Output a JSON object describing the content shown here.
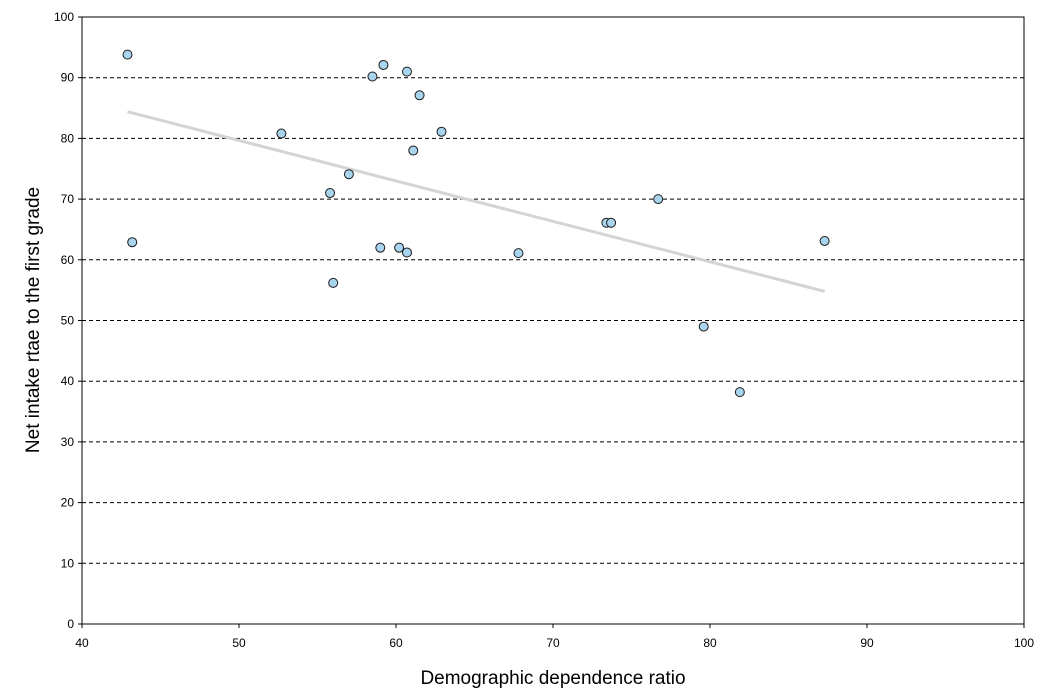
{
  "chart_data": {
    "type": "scatter",
    "xlabel": "Demographic dependence ratio",
    "ylabel": "Net intake rtae to the first grade",
    "xlim": [
      40,
      100
    ],
    "ylim": [
      0,
      100
    ],
    "x_ticks": [
      "40",
      "50",
      "60",
      "70",
      "80",
      "90",
      "100"
    ],
    "y_ticks": [
      "0",
      "10",
      "20",
      "30",
      "40",
      "50",
      "60",
      "70",
      "80",
      "90",
      "100"
    ],
    "grid": "horizontal-dashed",
    "points": [
      {
        "x": 42.9,
        "y": 93.8
      },
      {
        "x": 43.2,
        "y": 62.9
      },
      {
        "x": 52.7,
        "y": 80.8
      },
      {
        "x": 55.8,
        "y": 71.0
      },
      {
        "x": 56.0,
        "y": 56.2
      },
      {
        "x": 57.0,
        "y": 74.1
      },
      {
        "x": 58.5,
        "y": 90.2
      },
      {
        "x": 59.0,
        "y": 62.0
      },
      {
        "x": 59.2,
        "y": 92.1
      },
      {
        "x": 60.2,
        "y": 62.0
      },
      {
        "x": 60.7,
        "y": 61.2
      },
      {
        "x": 60.7,
        "y": 91.0
      },
      {
        "x": 61.1,
        "y": 78.0
      },
      {
        "x": 61.5,
        "y": 87.1
      },
      {
        "x": 62.9,
        "y": 81.1
      },
      {
        "x": 67.8,
        "y": 61.1
      },
      {
        "x": 73.4,
        "y": 66.1
      },
      {
        "x": 73.7,
        "y": 66.1
      },
      {
        "x": 76.7,
        "y": 70.0
      },
      {
        "x": 79.6,
        "y": 49.0
      },
      {
        "x": 81.9,
        "y": 38.2
      },
      {
        "x": 87.3,
        "y": 63.1
      }
    ],
    "trendline": [
      {
        "x": 42.9,
        "y": 84.4
      },
      {
        "x": 87.3,
        "y": 54.8
      }
    ],
    "colors": {
      "marker_fill": "#a9d4ee",
      "marker_stroke": "#1a1a1a",
      "trendline": "#d4d4d4",
      "grid": "#000000"
    }
  }
}
